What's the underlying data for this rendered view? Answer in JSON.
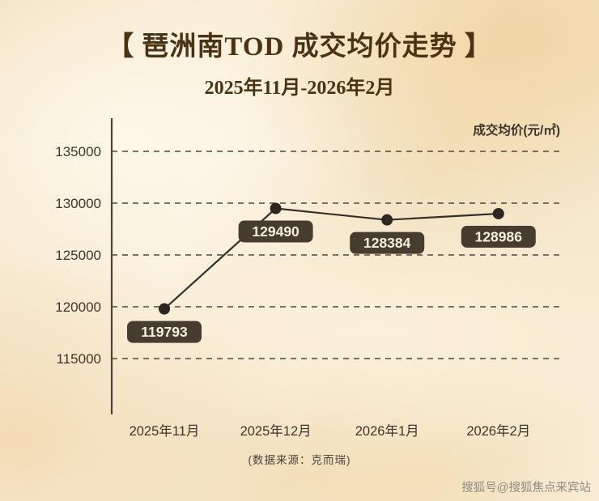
{
  "header": {
    "title": "【 琶洲南TOD 成交均价走势 】",
    "subtitle": "2025年11月-2026年2月"
  },
  "theme": {
    "title_color": "#4a3312",
    "text_color": "#3d352b",
    "watermark_color": "#8f8d86",
    "background_color": "#f6ead1"
  },
  "chart_data": {
    "type": "line",
    "title": "琶洲南TOD 成交均价走势",
    "subtitle": "2025年11月-2026年2月",
    "ylabel": "成交均价(元/㎡)",
    "xlabel": "",
    "categories": [
      "2025年11月",
      "2025年12月",
      "2026年1月",
      "2026年2月"
    ],
    "values": [
      119793,
      129490,
      128384,
      128986
    ],
    "yticks": [
      135000,
      130000,
      125000,
      120000,
      115000
    ],
    "ylim": [
      112500,
      137500
    ],
    "grid": "dashed-horizontal",
    "legend": false,
    "point_labels": [
      "119793",
      "129490",
      "128384",
      "128986"
    ],
    "colors": {
      "grid": "#4e483e",
      "axis": "#4a4337",
      "line": "#35302a",
      "point": "#2c2721",
      "label_box": "#463d30",
      "label_text": "#f7efdc",
      "text": "#3d352b"
    }
  },
  "footer": {
    "source": "(数据来源：克而瑞)",
    "watermark": "搜狐号@搜狐焦点来宾站"
  }
}
